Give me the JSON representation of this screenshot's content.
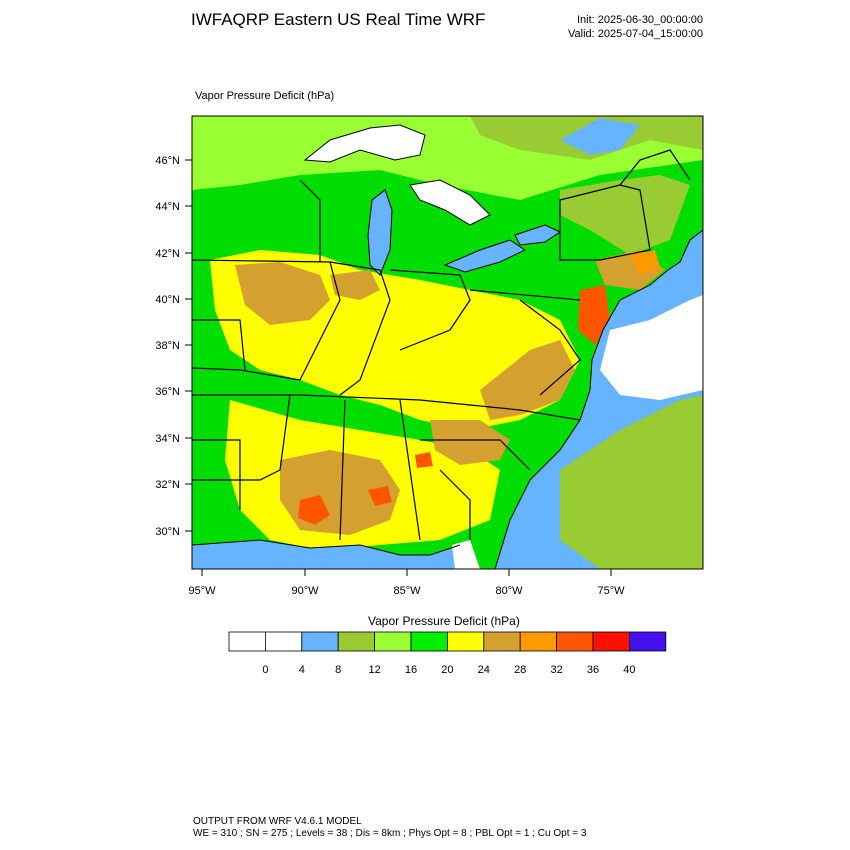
{
  "header": {
    "title": "IWFAQRP Eastern US Real Time WRF",
    "init": "Init: 2025-06-30_00:00:00",
    "valid": "Valid: 2025-07-04_15:00:00"
  },
  "map": {
    "field_label": "Vapor Pressure Deficit   (hPa)",
    "lat_labels": [
      "46°N",
      "44°N",
      "42°N",
      "40°N",
      "38°N",
      "36°N",
      "34°N",
      "32°N",
      "30°N"
    ],
    "lon_labels": [
      "95°W",
      "90°W",
      "85°W",
      "80°W",
      "75°W"
    ],
    "colors": {
      "water": "#66b3ff",
      "lake_white": "#ffffff",
      "land_green": "#00dd00",
      "land_lime": "#99ff33",
      "land_olive": "#99cc33",
      "land_yellow": "#ffff00",
      "land_tan": "#d4a030",
      "land_orange": "#ff9900",
      "land_redorange": "#ff5500",
      "land_red": "#ff1100"
    }
  },
  "colorbar": {
    "title": "Vapor Pressure Deficit   (hPa)",
    "colors": [
      "#ffffff",
      "#ffffff",
      "#66b3ff",
      "#99cc33",
      "#99ff33",
      "#00ee00",
      "#ffff00",
      "#d4a030",
      "#ff9900",
      "#ff5500",
      "#ff1100",
      "#4411ee"
    ],
    "ticks": [
      "0",
      "4",
      "8",
      "12",
      "16",
      "20",
      "24",
      "28",
      "32",
      "36",
      "40"
    ]
  },
  "footer": {
    "line1": "OUTPUT FROM WRF V4.6.1 MODEL",
    "line2": "WE = 310 ; SN = 275 ; Levels = 38 ; Dis = 8km ; Phys Opt = 8 ; PBL Opt = 1 ; Cu Opt = 3"
  }
}
